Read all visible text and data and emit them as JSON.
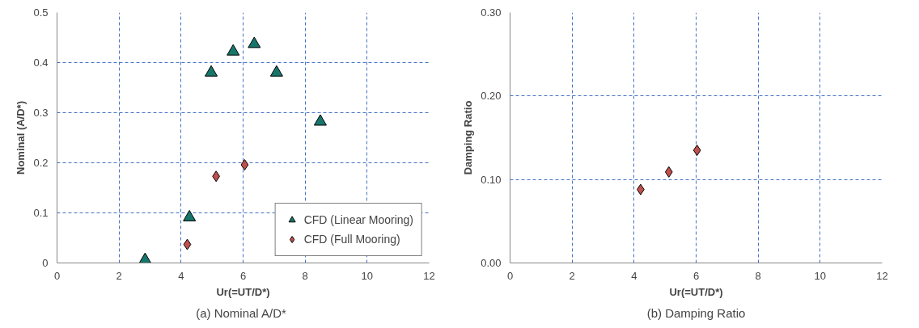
{
  "chart_data": [
    {
      "type": "scatter",
      "title": "(a)  Nominal A/D*",
      "xlabel": "Ur(=UT/D*)",
      "ylabel": "Nominal (A/D*)",
      "xlim": [
        0,
        12
      ],
      "xticks": [
        0,
        2,
        4,
        6,
        8,
        10,
        12
      ],
      "ylim": [
        0,
        0.5
      ],
      "yticks": [
        0,
        0.1,
        0.2,
        0.3,
        0.4,
        0.5
      ],
      "grid": true,
      "legend": "bottom right",
      "series": [
        {
          "name": "CFD (Linear Mooring)",
          "color": "#17766b",
          "marker": "triangle",
          "x": [
            2.84,
            4.27,
            4.97,
            5.68,
            6.36,
            7.08,
            8.49
          ],
          "values": [
            0.006,
            0.091,
            0.38,
            0.422,
            0.437,
            0.38,
            0.282
          ]
        },
        {
          "name": "CFD (Full Mooring)",
          "color": "#c0504d",
          "marker": "diamond",
          "x": [
            4.2,
            5.13,
            6.05
          ],
          "values": [
            0.037,
            0.173,
            0.196
          ]
        }
      ]
    },
    {
      "type": "scatter",
      "title": "(b) Damping Ratio",
      "xlabel": "Ur(=UT/D*)",
      "ylabel": "Damping Ratio",
      "xlim": [
        0,
        12
      ],
      "xticks": [
        0,
        2,
        4,
        6,
        8,
        10,
        12
      ],
      "ylim": [
        0,
        0.3
      ],
      "yticks": [
        {
          "value": 0,
          "label": "0.00"
        },
        {
          "value": 0.1,
          "label": "0.10"
        },
        {
          "value": 0.2,
          "label": "0.20"
        },
        {
          "value": 0.3,
          "label": "0.30"
        }
      ],
      "grid": true,
      "series": [
        {
          "color": "#c0504d",
          "marker": "diamond",
          "x": [
            4.21,
            5.12,
            6.03
          ],
          "values": [
            0.088,
            0.109,
            0.135
          ]
        }
      ]
    }
  ]
}
